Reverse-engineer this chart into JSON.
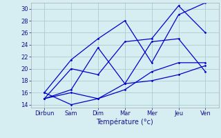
{
  "days": [
    "Dirbun",
    "Sam",
    "Dim",
    "Mar",
    "Mer",
    "Jeu",
    "Ven"
  ],
  "xlabel": "Température (°c)",
  "ylim": [
    13.5,
    31
  ],
  "yticks": [
    14,
    16,
    18,
    20,
    22,
    24,
    26,
    28,
    30
  ],
  "background_color": "#d6eef2",
  "grid_color": "#aacccc",
  "line_color": "#0000cc",
  "line1": [
    16,
    14,
    15,
    17.5,
    18,
    19,
    20.5
  ],
  "line2": [
    16,
    21.5,
    25,
    28,
    21,
    29,
    31
  ],
  "line3": [
    15,
    20,
    19,
    24.5,
    25,
    30.5,
    26
  ],
  "line4": [
    15,
    16,
    15,
    16.5,
    19.5,
    21,
    21
  ],
  "line5": [
    15,
    16.5,
    23.5,
    17.5,
    24.5,
    25,
    19.5
  ]
}
